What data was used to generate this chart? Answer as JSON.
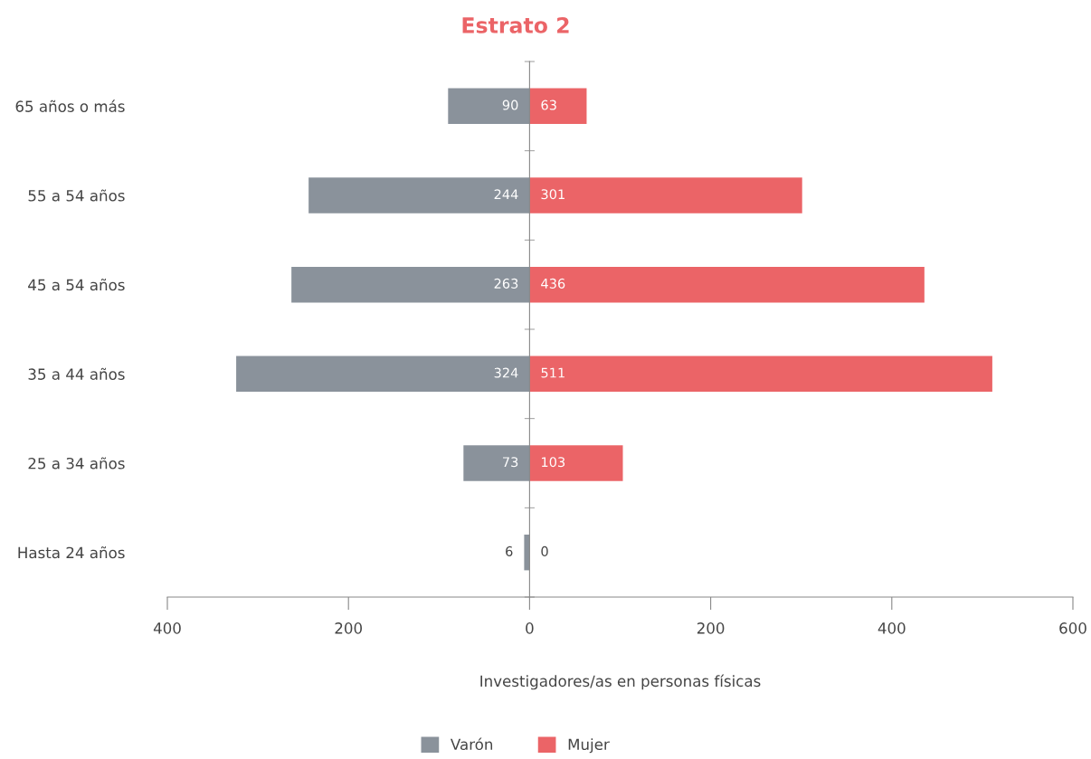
{
  "chart_data": {
    "type": "bar",
    "orientation": "horizontal",
    "title": "Estrato 2",
    "xlabel": "Investigadores/as en personas físicas",
    "categories": [
      "65 años o más",
      "55 a 54 años",
      "45 a 54 años",
      "35 a 44 años",
      "25 a 34 años",
      "Hasta 24 años"
    ],
    "series": [
      {
        "name": "Varón",
        "color": "#8a929b",
        "values": [
          90,
          244,
          263,
          324,
          73,
          6
        ],
        "base": [
          -90,
          -244,
          -263,
          -324,
          -73,
          -6
        ],
        "value_labels": [
          "90",
          "244",
          "263",
          "324",
          "73",
          "6"
        ]
      },
      {
        "name": "Mujer",
        "color": "#eb6467",
        "values": [
          63,
          301,
          436,
          511,
          103,
          0
        ],
        "value_labels": [
          "63",
          "301",
          "436",
          "511",
          "103",
          "0"
        ]
      }
    ],
    "xlim": [
      -400,
      600
    ],
    "xticks": [
      {
        "value": -400,
        "label": "400"
      },
      {
        "value": -200,
        "label": "200"
      },
      0,
      200,
      400,
      600
    ],
    "legend": "bottom"
  }
}
